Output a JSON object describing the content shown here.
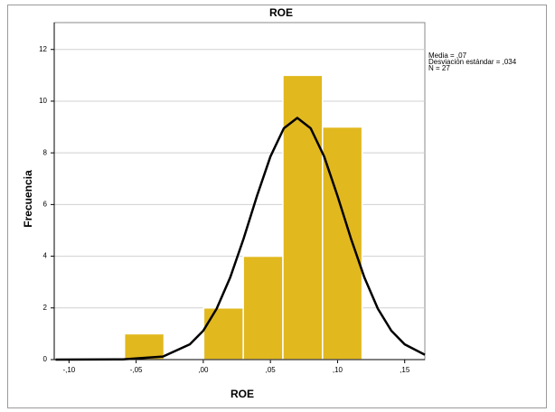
{
  "chart_data": {
    "type": "histogram",
    "title": "ROE",
    "x_label": "ROE",
    "y_label": "Frecuencia",
    "bins": [
      -0.0587,
      -0.0292,
      0.0003,
      0.0298,
      0.0593,
      0.0888,
      0.1183
    ],
    "values": [
      1,
      0,
      2,
      4,
      11,
      9
    ],
    "color": "#e1b81e",
    "curve": {
      "x": [
        -0.11,
        -0.06,
        -0.03,
        -0.01,
        0.0,
        0.01,
        0.02,
        0.03,
        0.04,
        0.05,
        0.06,
        0.07,
        0.08,
        0.09,
        0.1,
        0.11,
        0.12,
        0.13,
        0.14,
        0.15,
        0.165
      ],
      "values": [
        0,
        0.01,
        0.12,
        0.59,
        1.12,
        1.97,
        3.17,
        4.68,
        6.33,
        7.86,
        8.95,
        9.35,
        8.95,
        7.86,
        6.33,
        4.68,
        3.17,
        1.97,
        1.12,
        0.59,
        0.19
      ],
      "color": "#000000"
    },
    "xlim": [
      -0.111,
      0.165
    ],
    "ylim": [
      0,
      13.04
    ],
    "xticks": [
      {
        "value": -0.1,
        "label": "-,10"
      },
      {
        "value": -0.05,
        "label": "-,05"
      },
      {
        "value": 0,
        "label": ",00"
      },
      {
        "value": 0.05,
        "label": ",05"
      },
      {
        "value": 0.1,
        "label": ",10"
      },
      {
        "value": 0.15,
        "label": ",15"
      }
    ],
    "yticks": [
      0,
      2,
      4,
      6,
      8,
      10,
      12
    ],
    "grid": true,
    "annotations": [
      "Media = ,07",
      "Desviación estándar = ,034",
      "N = 27"
    ]
  }
}
